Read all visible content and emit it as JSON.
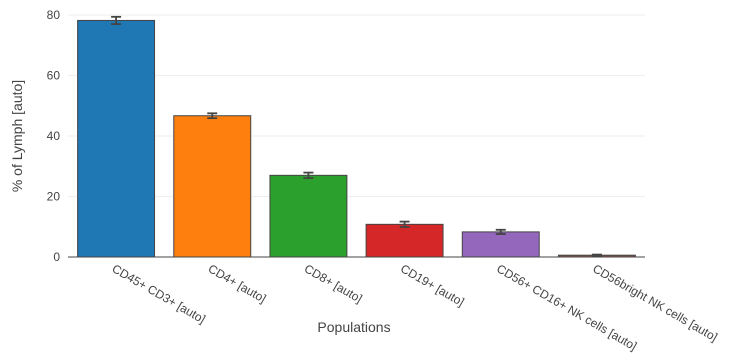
{
  "chart_data": {
    "type": "bar",
    "categories": [
      "CD45+ CD3+ [auto]",
      "CD4+ [auto]",
      "CD8+ [auto]",
      "CD19+ [auto]",
      "CD56+ CD16+ NK cells [auto]",
      "CD56bright NK cells [auto]"
    ],
    "values": [
      78.2,
      46.7,
      27.0,
      10.8,
      8.3,
      0.6
    ],
    "errors": [
      1.2,
      0.8,
      0.9,
      0.9,
      0.7,
      0.2
    ],
    "colors": [
      "#1f77b4",
      "#ff7f0e",
      "#2ca02c",
      "#d62728",
      "#9467bd",
      "#8c564b"
    ],
    "xlabel": "Populations",
    "ylabel": "% of Lymph [auto]",
    "ylim": [
      0,
      80
    ],
    "yticks": [
      0,
      20,
      40,
      60,
      80
    ],
    "grid": true
  }
}
